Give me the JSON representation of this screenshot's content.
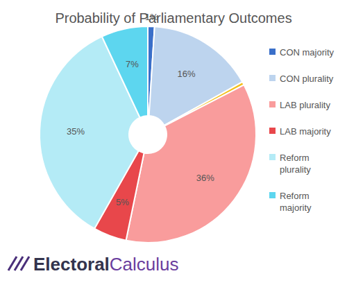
{
  "chart_data": {
    "type": "pie",
    "title": "Probability of Parliamentary Outcomes",
    "categories": [
      "CON majority",
      "CON plurality",
      null,
      "LAB plurality",
      "LAB majority",
      "Reform plurality",
      "Reform majority"
    ],
    "values": [
      1,
      16,
      0.5,
      36,
      5,
      35,
      7
    ],
    "value_labels": [
      "1%",
      "16%",
      null,
      "36%",
      "5%",
      "35%",
      "7%"
    ],
    "colors": [
      "#3a6fc9",
      "#bdd4ee",
      "#f3c01c",
      "#f99c9c",
      "#e8474b",
      "#b4ebf6",
      "#5dd6ef"
    ],
    "data_labels": true,
    "legend": "right",
    "annotations": [
      "Electoral",
      "Calculus"
    ]
  }
}
